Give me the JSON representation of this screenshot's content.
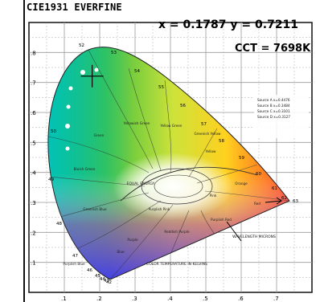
{
  "header": {
    "title": "CIE1931 EVERFINE",
    "coordinate_readout": "x = 0.1787 y = 0.7211",
    "cct_readout": "CCT = 7698K"
  },
  "chart_data": {
    "type": "scatter",
    "title": "",
    "xlabel": "",
    "ylabel": "",
    "xlim": [
      0,
      0.8
    ],
    "ylim": [
      0,
      0.9
    ],
    "grid": true,
    "point": {
      "x": 0.1787,
      "y": 0.7211,
      "cct_k": 7698
    },
    "x_tick_labels": [
      ".1",
      ".2",
      ".3",
      ".4",
      ".5",
      ".6",
      ".7"
    ],
    "y_tick_labels": [
      ".8",
      ".7",
      ".6",
      ".5",
      ".4",
      ".3",
      ".2",
      ".1"
    ],
    "wavelength_labels": [
      "52",
      "53",
      "54",
      "55",
      "56",
      "57",
      "58",
      "59",
      "60",
      "61",
      "62",
      "63",
      "50",
      "49",
      "48",
      "47",
      "46",
      "45",
      "44",
      "43",
      "42"
    ],
    "region_labels": [
      "Yellowish Green",
      "Yellow Green",
      "Greenish Yellow",
      "Yellow",
      "Green",
      "Bluish Green",
      "Greenish Blue",
      "Blue",
      "Purplish Blue",
      "Purple",
      "Reddish Purple",
      "Purplish Pink",
      "Pink",
      "Orange",
      "Red",
      "Purplish Red"
    ],
    "annotations": [
      "EQUAL ENERGY",
      "WAVELENGTH MICRONS",
      "COLOR TEMPERATURE IN KELVINS"
    ],
    "source_legend": [
      "Source A x=0.4476",
      "Source B x=0.3484",
      "Source C x=0.3101",
      "Source D x=0.3127"
    ]
  },
  "colors": {
    "crosshair": "#000000",
    "grid": "#9a9a9a",
    "frame": "#111111",
    "locus_white_dots": "#ffffff"
  }
}
